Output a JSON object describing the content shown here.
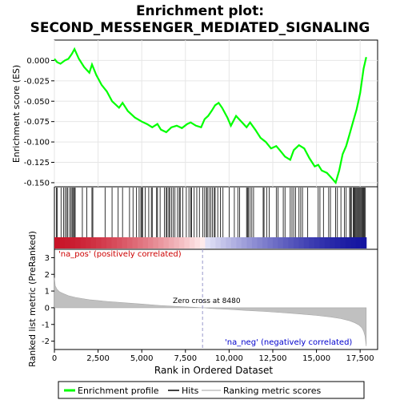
{
  "chart_data": {
    "type": "line",
    "title_line1": "Enrichment plot:",
    "title_line2": "SECOND_MESSENGER_MEDIATED_SIGNALING",
    "top_panel": {
      "ylabel": "Enrichment score (ES)",
      "ylim": [
        -0.155,
        0.025
      ],
      "yticks": [
        0.0,
        -0.025,
        -0.05,
        -0.075,
        -0.1,
        -0.125,
        -0.15
      ],
      "ytick_labels": [
        "0.000",
        "-0.025",
        "-0.050",
        "-0.075",
        "-0.100",
        "-0.125",
        "-0.150"
      ],
      "series": [
        {
          "name": "Enrichment profile",
          "color": "#00ff00",
          "x": [
            0,
            150,
            350,
            600,
            800,
            1000,
            1150,
            1400,
            1700,
            2000,
            2150,
            2400,
            2700,
            3000,
            3300,
            3700,
            3900,
            4200,
            4600,
            5000,
            5300,
            5600,
            5900,
            6100,
            6400,
            6700,
            7000,
            7300,
            7600,
            7800,
            8100,
            8400,
            8600,
            8800,
            9000,
            9200,
            9400,
            9600,
            9900,
            10100,
            10400,
            10700,
            11000,
            11200,
            11500,
            11800,
            12100,
            12400,
            12700,
            12900,
            13200,
            13500,
            13700,
            14000,
            14300,
            14600,
            14900,
            15100,
            15300,
            15600,
            15900,
            16100,
            16300,
            16500,
            16700,
            16900,
            17100,
            17300,
            17500,
            17700,
            17850
          ],
          "y": [
            0.002,
            -0.002,
            -0.004,
            0.0,
            0.002,
            0.008,
            0.014,
            0.002,
            -0.008,
            -0.015,
            -0.005,
            -0.018,
            -0.03,
            -0.038,
            -0.05,
            -0.058,
            -0.052,
            -0.062,
            -0.07,
            -0.075,
            -0.078,
            -0.082,
            -0.078,
            -0.085,
            -0.088,
            -0.082,
            -0.08,
            -0.083,
            -0.078,
            -0.076,
            -0.08,
            -0.082,
            -0.072,
            -0.068,
            -0.062,
            -0.055,
            -0.052,
            -0.058,
            -0.07,
            -0.08,
            -0.068,
            -0.075,
            -0.082,
            -0.076,
            -0.085,
            -0.095,
            -0.1,
            -0.108,
            -0.105,
            -0.11,
            -0.118,
            -0.122,
            -0.11,
            -0.104,
            -0.108,
            -0.12,
            -0.13,
            -0.128,
            -0.135,
            -0.138,
            -0.145,
            -0.15,
            -0.135,
            -0.115,
            -0.105,
            -0.09,
            -0.075,
            -0.06,
            -0.04,
            -0.01,
            0.004
          ]
        }
      ]
    },
    "hits_panel": {
      "name": "Hits",
      "hit_positions": [
        110,
        170,
        380,
        520,
        610,
        700,
        770,
        880,
        960,
        1020,
        1090,
        1140,
        1190,
        1600,
        1850,
        2150,
        2200,
        2900,
        3300,
        3650,
        3900,
        4300,
        4500,
        4700,
        4850,
        4950,
        5000,
        5050,
        5200,
        5400,
        5550,
        5600,
        5850,
        5900,
        6050,
        6300,
        6400,
        6450,
        6550,
        6600,
        6700,
        6800,
        6900,
        7050,
        7150,
        7200,
        7350,
        7550,
        7700,
        7800,
        7850,
        8000,
        8150,
        8300,
        8500,
        8600,
        8700,
        8750,
        8850,
        8950,
        9050,
        9150,
        9200,
        9350,
        9500,
        9650,
        10000,
        10300,
        10500,
        10600,
        11000,
        11050,
        11100,
        11200,
        11300,
        11400,
        11950,
        12000,
        12150,
        12300,
        12700,
        12800,
        13100,
        13200,
        13500,
        13600,
        13700,
        13800,
        14000,
        14100,
        14200,
        14500,
        15100,
        15200,
        15400,
        15700,
        15800,
        16100,
        16200,
        16400,
        16600,
        16700,
        16900,
        16950,
        17000,
        17100,
        17150,
        17200,
        17250,
        17300,
        17350,
        17400,
        17450,
        17500,
        17550,
        17600,
        17650,
        17700,
        17750,
        17800
      ]
    },
    "ranked_panel": {
      "ylabel": "Ranked list metric (PreRanked)",
      "ylim": [
        -2.5,
        3.5
      ],
      "yticks": [
        3,
        2,
        1,
        0,
        -1,
        -2
      ],
      "series": [
        {
          "name": "Ranking metric scores",
          "color": "#c0c0c0",
          "x": [
            0,
            50,
            150,
            300,
            500,
            800,
            1200,
            1600,
            2000,
            3000,
            4000,
            5000,
            6000,
            7000,
            8000,
            8480,
            9000,
            10000,
            11000,
            12000,
            13000,
            14000,
            15000,
            15800,
            16400,
            16900,
            17200,
            17450,
            17600,
            17700,
            17780,
            17850
          ],
          "y": [
            1.8,
            1.3,
            1.1,
            0.95,
            0.85,
            0.72,
            0.62,
            0.55,
            0.48,
            0.38,
            0.3,
            0.22,
            0.14,
            0.08,
            0.03,
            0.0,
            -0.04,
            -0.1,
            -0.16,
            -0.22,
            -0.29,
            -0.37,
            -0.46,
            -0.55,
            -0.65,
            -0.78,
            -0.9,
            -1.05,
            -1.2,
            -1.4,
            -1.7,
            -2.3
          ]
        }
      ],
      "zero_cross_label": "Zero cross at 8480",
      "zero_cross": 8480,
      "pos_label": "'na_pos' (positively correlated)",
      "neg_label": "'na_neg' (negatively correlated)",
      "pos_color": "#cc0000",
      "neg_color": "#0000cc"
    },
    "x_axis": {
      "xlabel": "Rank in Ordered Dataset",
      "xlim": [
        0,
        18500
      ],
      "xticks": [
        0,
        2500,
        5000,
        7500,
        10000,
        12500,
        15000,
        17500
      ],
      "xtick_labels": [
        "0",
        "2,500",
        "5,000",
        "7,500",
        "10,000",
        "12,500",
        "15,000",
        "17,500"
      ],
      "max_rank": 17850
    },
    "legend": {
      "placement": "bottom",
      "entries": [
        {
          "label": "Enrichment profile",
          "color": "#00ff00"
        },
        {
          "label": "Hits",
          "color": "#000000"
        },
        {
          "label": "Ranking metric scores",
          "color": "#c0c0c0"
        }
      ]
    }
  }
}
